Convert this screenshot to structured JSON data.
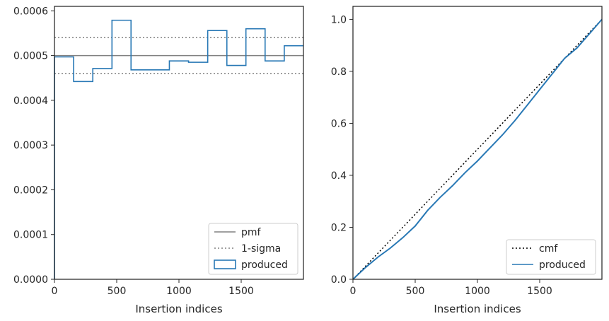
{
  "chart_data": [
    {
      "type": "line",
      "panel": "left",
      "xlabel": "Insertion indices",
      "ylabel": "",
      "xlim": [
        0,
        2000
      ],
      "ylim": [
        0,
        0.00061
      ],
      "xticks": [
        0,
        500,
        1000,
        1500
      ],
      "xtick_labels": [
        "0",
        "500",
        "1000",
        "1500"
      ],
      "yticks": [
        0,
        0.0001,
        0.0002,
        0.0003,
        0.0004,
        0.0005,
        0.0006
      ],
      "ytick_labels": [
        "0.0000",
        "0.0001",
        "0.0002",
        "0.0003",
        "0.0004",
        "0.0005",
        "0.0006"
      ],
      "grid": false,
      "legend_position": "lower right",
      "series": [
        {
          "name": "pmf",
          "kind": "hline",
          "style": "solid",
          "color": "#808080",
          "y": 0.0005
        },
        {
          "name": "1-sigma",
          "kind": "hlines",
          "style": "dotted",
          "color": "#808080",
          "y": [
            0.00046,
            0.00054
          ]
        },
        {
          "name": "produced",
          "kind": "step",
          "color": "#2878b5",
          "bin_edges": [
            0,
            154,
            308,
            462,
            615,
            769,
            923,
            1077,
            1231,
            1385,
            1538,
            1692,
            1846,
            2000
          ],
          "values": [
            0.000497,
            0.000442,
            0.000471,
            0.000579,
            0.000468,
            0.000468,
            0.000488,
            0.000485,
            0.000556,
            0.000478,
            0.00056,
            0.000488,
            0.000522
          ]
        }
      ]
    },
    {
      "type": "line",
      "panel": "right",
      "xlabel": "Insertion indices",
      "ylabel": "",
      "xlim": [
        0,
        2000
      ],
      "ylim": [
        0,
        1.05
      ],
      "xticks": [
        0,
        500,
        1000,
        1500
      ],
      "xtick_labels": [
        "0",
        "500",
        "1000",
        "1500"
      ],
      "yticks": [
        0,
        0.2,
        0.4,
        0.6,
        0.8,
        1.0
      ],
      "ytick_labels": [
        "0.0",
        "0.2",
        "0.4",
        "0.6",
        "0.8",
        "1.0"
      ],
      "grid": false,
      "legend_position": "lower right",
      "series": [
        {
          "name": "cmf",
          "kind": "line",
          "style": "dotted",
          "color": "#000000",
          "x": [
            0,
            2000
          ],
          "y": [
            0,
            1.0
          ]
        },
        {
          "name": "produced",
          "kind": "line",
          "color": "#2878b5",
          "x": [
            0,
            100,
            200,
            300,
            400,
            500,
            600,
            700,
            800,
            900,
            1000,
            1100,
            1200,
            1300,
            1400,
            1500,
            1600,
            1700,
            1800,
            1900,
            2000
          ],
          "y": [
            0,
            0.045,
            0.085,
            0.12,
            0.16,
            0.205,
            0.265,
            0.315,
            0.36,
            0.41,
            0.455,
            0.505,
            0.555,
            0.61,
            0.67,
            0.73,
            0.79,
            0.85,
            0.89,
            0.945,
            1.0
          ]
        }
      ]
    }
  ]
}
